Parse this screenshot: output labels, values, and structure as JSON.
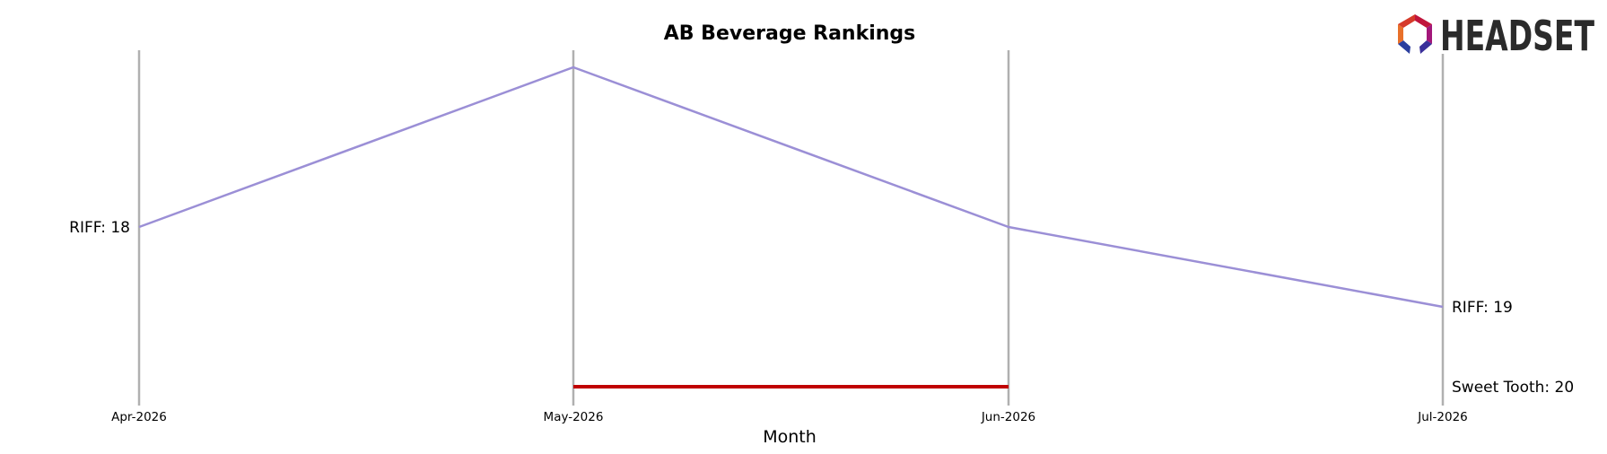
{
  "chart_data": {
    "type": "line",
    "title": "AB Beverage Rankings",
    "xlabel": "Month",
    "ylabel": "",
    "categories": [
      "Apr-2026",
      "May-2026",
      "Jun-2026",
      "Jul-2026"
    ],
    "ylim_rank": [
      22,
      16
    ],
    "series": [
      {
        "name": "RIFF",
        "color": "#9b8fd6",
        "values": [
          18,
          16,
          18,
          19
        ],
        "start_label": "RIFF: 18",
        "end_label": "RIFF: 19"
      },
      {
        "name": "Sweet Tooth",
        "color": "#c00000",
        "values": [
          null,
          20,
          20,
          null
        ],
        "start_label": "",
        "end_label": "Sweet Tooth: 20"
      }
    ],
    "grid": "vertical",
    "legend": "none"
  },
  "branding": {
    "logo_text": "HEADSET",
    "logo_icon": "headset-hexagon-logo-icon"
  }
}
